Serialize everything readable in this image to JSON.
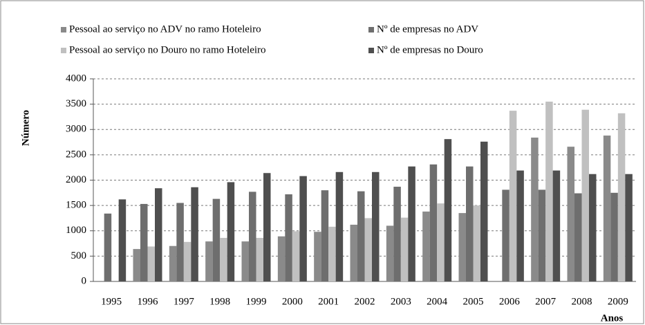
{
  "chart_data": {
    "type": "bar",
    "y_label": "Número",
    "x_label": "Anos",
    "categories": [
      "1995",
      "1996",
      "1997",
      "1998",
      "1999",
      "2000",
      "2001",
      "2002",
      "2003",
      "2004",
      "2005",
      "2006",
      "2007",
      "2008",
      "2009"
    ],
    "series": [
      {
        "name": "Pessoal ao serviço no ADV no ramo Hoteleiro",
        "color": "#8a8a8a",
        "values": [
          null,
          640,
          700,
          790,
          790,
          890,
          980,
          1120,
          1100,
          1380,
          1350,
          null,
          2840,
          2660,
          2880
        ]
      },
      {
        "name": "Nº de empresas no ADV",
        "color": "#6e6e6e",
        "values": [
          1340,
          1530,
          1550,
          1630,
          1770,
          1720,
          1800,
          1780,
          1870,
          2310,
          2270,
          1810,
          1810,
          1740,
          1750
        ]
      },
      {
        "name": "Pessoal ao serviço no Douro no ramo Hoteleiro",
        "color": "#c0c0c0",
        "values": [
          null,
          690,
          780,
          860,
          860,
          990,
          1080,
          1250,
          1260,
          1540,
          1500,
          3370,
          3550,
          3390,
          3320
        ]
      },
      {
        "name": "Nº de empresas no Douro",
        "color": "#4f4f4f",
        "values": [
          1620,
          1840,
          1860,
          1960,
          2140,
          2080,
          2160,
          2160,
          2270,
          2810,
          2760,
          2190,
          2190,
          2120,
          2120
        ]
      }
    ],
    "ylim": [
      0,
      4000
    ],
    "yticks": [
      0,
      500,
      1000,
      1500,
      2000,
      2500,
      3000,
      3500,
      4000
    ],
    "grid": true
  }
}
